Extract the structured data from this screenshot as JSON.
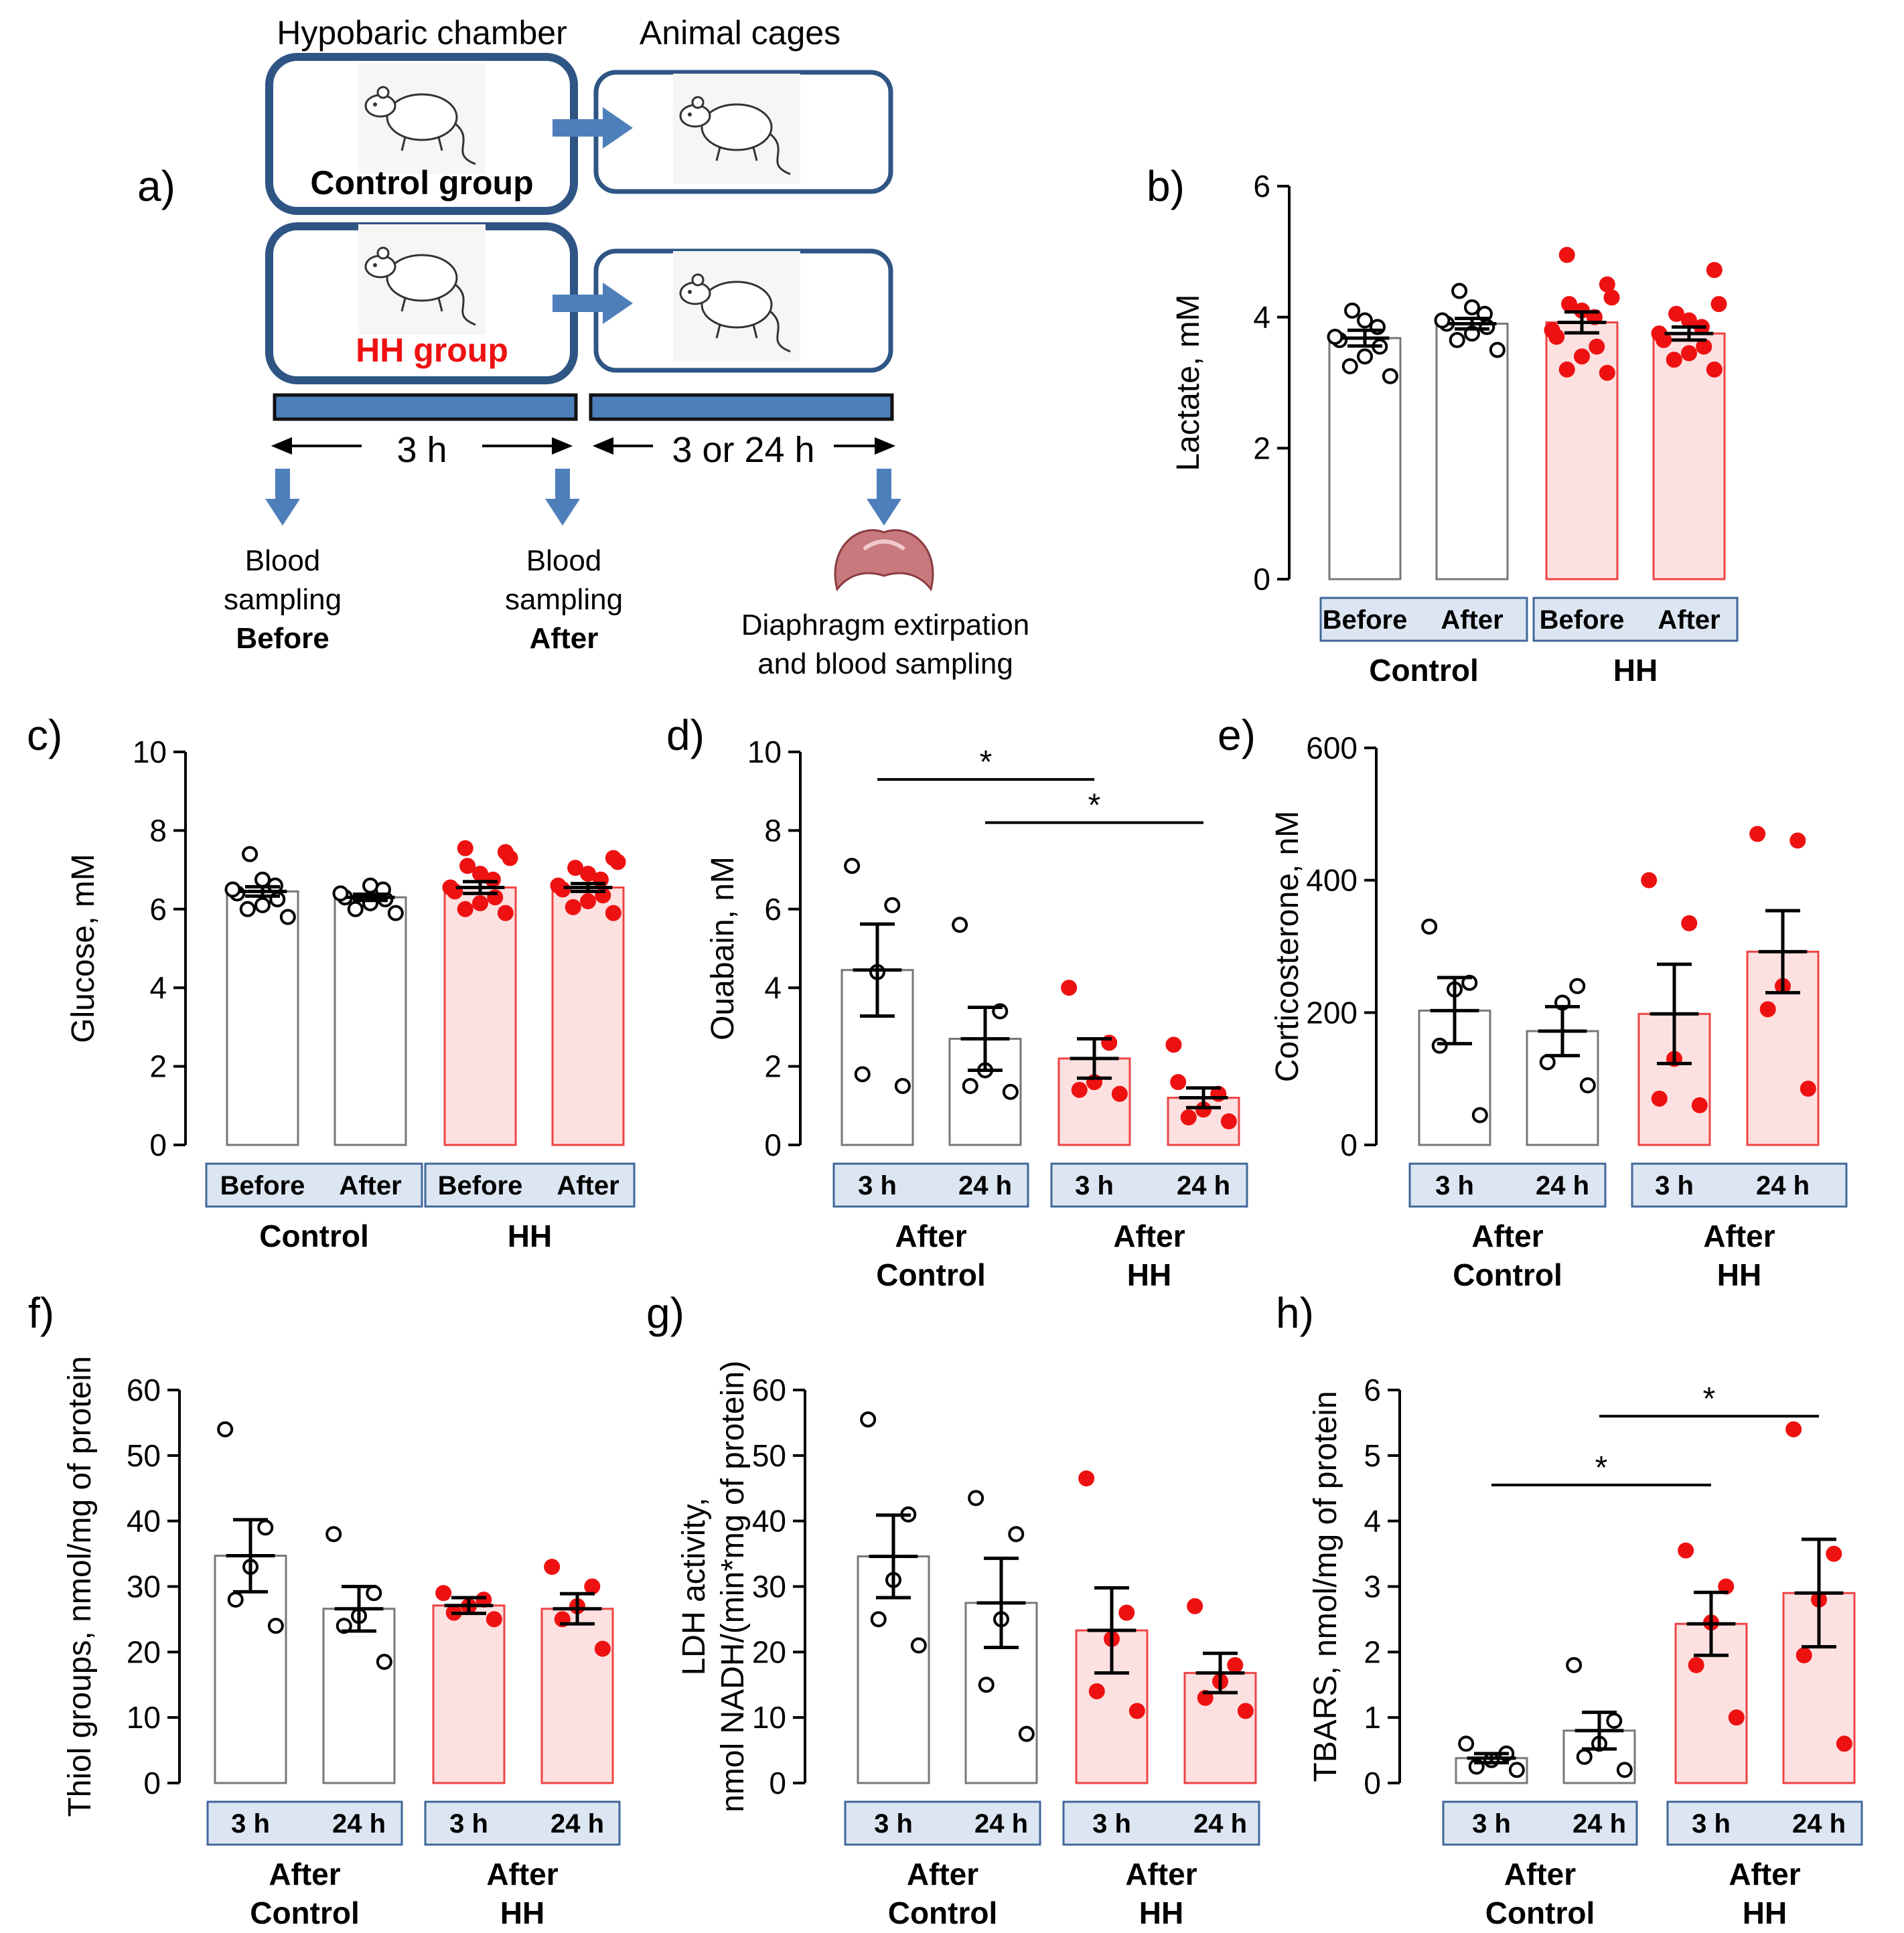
{
  "colors": {
    "control": "#000000",
    "hh": "#ee1111",
    "hh_fill": "#fde1e1",
    "hh_bar_edge": "#ee4444",
    "box": "#2e5584",
    "arrow": "#4f7fba",
    "group_box_fill": "#dce6f2",
    "group_box_edge": "#41679a"
  },
  "schematic": {
    "panel_label": "a)",
    "chamber_title": "Hypobaric chamber",
    "cages_title": "Animal cages",
    "control_group": "Control group",
    "hh_group": "HH group",
    "duration_chamber": "3 h",
    "duration_cages": "3 or 24 h",
    "sampling_before": [
      "Blood",
      "sampling",
      "Before"
    ],
    "sampling_after": [
      "Blood",
      "sampling",
      "After"
    ],
    "extirpation": [
      "Diaphragm extirpation",
      "and blood sampling"
    ],
    "icons": [
      "rat-icon",
      "diaphragm-icon"
    ]
  },
  "chart_data": [
    {
      "id": "b",
      "panel_label": "b)",
      "type": "bar",
      "ylabel": "Lactate, mM",
      "ylim": [
        0,
        6
      ],
      "yticks": [
        0,
        2,
        4,
        6
      ],
      "groups": [
        {
          "name": "Control",
          "bar_labels": [
            "Before",
            "After"
          ]
        },
        {
          "name": "HH",
          "bar_labels": [
            "Before",
            "After"
          ]
        }
      ],
      "series": [
        {
          "name": "Control Before",
          "group": "control",
          "mean": 3.68,
          "sem": 0.12,
          "points": [
            3.1,
            3.25,
            3.4,
            3.55,
            3.65,
            3.7,
            3.85,
            3.95,
            4.1
          ]
        },
        {
          "name": "Control After",
          "group": "control",
          "mean": 3.9,
          "sem": 0.08,
          "points": [
            3.5,
            3.65,
            3.75,
            3.85,
            3.9,
            3.95,
            4.05,
            4.15,
            4.4
          ]
        },
        {
          "name": "HH Before",
          "group": "hh",
          "mean": 3.92,
          "sem": 0.16,
          "points": [
            3.15,
            3.2,
            3.4,
            3.55,
            3.7,
            3.8,
            4.0,
            4.1,
            4.2,
            4.3,
            4.5,
            4.95
          ]
        },
        {
          "name": "HH After",
          "group": "hh",
          "mean": 3.75,
          "sem": 0.1,
          "points": [
            3.2,
            3.35,
            3.45,
            3.55,
            3.65,
            3.75,
            3.85,
            3.95,
            4.05,
            4.2,
            4.72
          ]
        }
      ],
      "significance": []
    },
    {
      "id": "c",
      "panel_label": "c)",
      "type": "bar",
      "ylabel": "Glucose, mM",
      "ylim": [
        0,
        10
      ],
      "yticks": [
        0,
        2,
        4,
        6,
        8,
        10
      ],
      "groups": [
        {
          "name": "Control",
          "bar_labels": [
            "Before",
            "After"
          ]
        },
        {
          "name": "HH",
          "bar_labels": [
            "Before",
            "After"
          ]
        }
      ],
      "series": [
        {
          "name": "Control Before",
          "group": "control",
          "mean": 6.45,
          "sem": 0.12,
          "points": [
            5.8,
            6.0,
            6.1,
            6.25,
            6.4,
            6.5,
            6.6,
            6.75,
            7.4
          ]
        },
        {
          "name": "Control After",
          "group": "control",
          "mean": 6.3,
          "sem": 0.08,
          "points": [
            5.9,
            6.0,
            6.15,
            6.25,
            6.3,
            6.4,
            6.5,
            6.6
          ]
        },
        {
          "name": "HH Before",
          "group": "hh",
          "mean": 6.55,
          "sem": 0.15,
          "points": [
            5.9,
            6.0,
            6.15,
            6.3,
            6.45,
            6.55,
            6.75,
            6.9,
            7.1,
            7.3,
            7.45,
            7.55
          ]
        },
        {
          "name": "HH After",
          "group": "hh",
          "mean": 6.55,
          "sem": 0.1,
          "points": [
            5.9,
            6.05,
            6.2,
            6.35,
            6.5,
            6.6,
            6.75,
            6.9,
            7.05,
            7.2,
            7.3
          ]
        }
      ],
      "significance": []
    },
    {
      "id": "d",
      "panel_label": "d)",
      "type": "bar",
      "ylabel": "Ouabain, nM",
      "ylim": [
        0,
        10
      ],
      "yticks": [
        0,
        2,
        4,
        6,
        8,
        10
      ],
      "groups": [
        {
          "name": "After\nControl",
          "bar_labels": [
            "3 h",
            "24 h"
          ]
        },
        {
          "name": "After\nHH",
          "bar_labels": [
            "3 h",
            "24 h"
          ]
        }
      ],
      "series": [
        {
          "name": "Control 3 h",
          "group": "control",
          "mean": 4.45,
          "sem": 1.17,
          "points": [
            1.5,
            1.8,
            4.4,
            6.1,
            7.1
          ]
        },
        {
          "name": "Control 24 h",
          "group": "control",
          "mean": 2.7,
          "sem": 0.8,
          "points": [
            1.35,
            1.5,
            1.9,
            3.4,
            5.6
          ]
        },
        {
          "name": "HH 3 h",
          "group": "hh",
          "mean": 2.2,
          "sem": 0.5,
          "points": [
            1.3,
            1.4,
            1.6,
            2.6,
            4.0
          ]
        },
        {
          "name": "HH 24 h",
          "group": "hh",
          "mean": 1.2,
          "sem": 0.25,
          "points": [
            0.6,
            0.7,
            0.9,
            1.3,
            1.6,
            2.55
          ]
        }
      ],
      "significance": [
        {
          "from": 0,
          "to": 2,
          "y": 9.3,
          "label": "*"
        },
        {
          "from": 1,
          "to": 3,
          "y": 8.2,
          "label": "*"
        }
      ]
    },
    {
      "id": "e",
      "panel_label": "e)",
      "type": "bar",
      "ylabel": "Corticosterone, nM",
      "ylim": [
        0,
        600
      ],
      "yticks": [
        0,
        200,
        400,
        600
      ],
      "groups": [
        {
          "name": "After\nControl",
          "bar_labels": [
            "3 h",
            "24 h"
          ]
        },
        {
          "name": "After\nHH",
          "bar_labels": [
            "3 h",
            "24 h"
          ]
        }
      ],
      "series": [
        {
          "name": "Control 3 h",
          "group": "control",
          "mean": 203,
          "sem": 50,
          "points": [
            45,
            150,
            235,
            245,
            330
          ]
        },
        {
          "name": "Control 24 h",
          "group": "control",
          "mean": 172,
          "sem": 37,
          "points": [
            90,
            125,
            215,
            240
          ]
        },
        {
          "name": "HH 3 h",
          "group": "hh",
          "mean": 198,
          "sem": 75,
          "points": [
            60,
            70,
            130,
            335,
            400
          ]
        },
        {
          "name": "HH 24 h",
          "group": "hh",
          "mean": 292,
          "sem": 62,
          "points": [
            85,
            205,
            240,
            460,
            470
          ]
        }
      ],
      "significance": []
    },
    {
      "id": "f",
      "panel_label": "f)",
      "type": "bar",
      "ylabel": "Thiol groups, nmol/mg of protein",
      "ylim": [
        0,
        60
      ],
      "yticks": [
        0,
        10,
        20,
        30,
        40,
        50,
        60
      ],
      "groups": [
        {
          "name": "After\nControl",
          "bar_labels": [
            "3 h",
            "24 h"
          ]
        },
        {
          "name": "After\nHH",
          "bar_labels": [
            "3 h",
            "24 h"
          ]
        }
      ],
      "series": [
        {
          "name": "Control 3 h",
          "group": "control",
          "mean": 34.7,
          "sem": 5.5,
          "points": [
            24.0,
            28.0,
            33.0,
            39.0,
            54.0
          ]
        },
        {
          "name": "Control 24 h",
          "group": "control",
          "mean": 26.6,
          "sem": 3.4,
          "points": [
            18.5,
            24.0,
            25.5,
            29.0,
            38.0
          ]
        },
        {
          "name": "HH 3 h",
          "group": "hh",
          "mean": 27.1,
          "sem": 1.2,
          "points": [
            25.0,
            26.0,
            27.0,
            28.0,
            29.0
          ]
        },
        {
          "name": "HH 24 h",
          "group": "hh",
          "mean": 26.6,
          "sem": 2.3,
          "points": [
            20.5,
            25.0,
            27.0,
            30.0,
            33.0
          ]
        }
      ],
      "significance": []
    },
    {
      "id": "g",
      "panel_label": "g)",
      "type": "bar",
      "ylabel": "LDH activity,\nnmol NADH/(min*mg of protein)",
      "ylim": [
        0,
        60
      ],
      "yticks": [
        0,
        10,
        20,
        30,
        40,
        50,
        60
      ],
      "groups": [
        {
          "name": "After\nControl",
          "bar_labels": [
            "3 h",
            "24 h"
          ]
        },
        {
          "name": "After\nHH",
          "bar_labels": [
            "3 h",
            "24 h"
          ]
        }
      ],
      "series": [
        {
          "name": "Control 3 h",
          "group": "control",
          "mean": 34.6,
          "sem": 6.3,
          "points": [
            21.0,
            25.0,
            31.0,
            41.0,
            55.5
          ]
        },
        {
          "name": "Control 24 h",
          "group": "control",
          "mean": 27.5,
          "sem": 6.8,
          "points": [
            7.5,
            15.0,
            25.0,
            38.0,
            43.5
          ]
        },
        {
          "name": "HH 3 h",
          "group": "hh",
          "mean": 23.3,
          "sem": 6.5,
          "points": [
            11.0,
            14.0,
            22.0,
            26.0,
            46.5
          ]
        },
        {
          "name": "HH 24 h",
          "group": "hh",
          "mean": 16.8,
          "sem": 3.0,
          "points": [
            11.0,
            13.0,
            15.5,
            18.0,
            27.0
          ]
        }
      ],
      "significance": []
    },
    {
      "id": "h",
      "panel_label": "h)",
      "type": "bar",
      "ylabel": "TBARS, nmol/mg of protein",
      "ylim": [
        0,
        6
      ],
      "yticks": [
        0,
        1,
        2,
        3,
        4,
        5,
        6
      ],
      "groups": [
        {
          "name": "After\nControl",
          "bar_labels": [
            "3 h",
            "24 h"
          ]
        },
        {
          "name": "After\nHH",
          "bar_labels": [
            "3 h",
            "24 h"
          ]
        }
      ],
      "series": [
        {
          "name": "Control 3 h",
          "group": "control",
          "mean": 0.38,
          "sem": 0.07,
          "points": [
            0.2,
            0.25,
            0.35,
            0.45,
            0.6
          ]
        },
        {
          "name": "Control 24 h",
          "group": "control",
          "mean": 0.8,
          "sem": 0.28,
          "points": [
            0.2,
            0.4,
            0.6,
            0.95,
            1.8
          ]
        },
        {
          "name": "HH 3 h",
          "group": "hh",
          "mean": 2.43,
          "sem": 0.48,
          "points": [
            1.0,
            1.8,
            2.45,
            3.0,
            3.55
          ]
        },
        {
          "name": "HH 24 h",
          "group": "hh",
          "mean": 2.9,
          "sem": 0.82,
          "points": [
            0.6,
            1.95,
            2.8,
            3.5,
            5.4
          ]
        }
      ],
      "significance": [
        {
          "from": 0,
          "to": 2,
          "y": 4.55,
          "label": "*"
        },
        {
          "from": 1,
          "to": 3,
          "y": 5.6,
          "label": "*"
        }
      ]
    }
  ]
}
